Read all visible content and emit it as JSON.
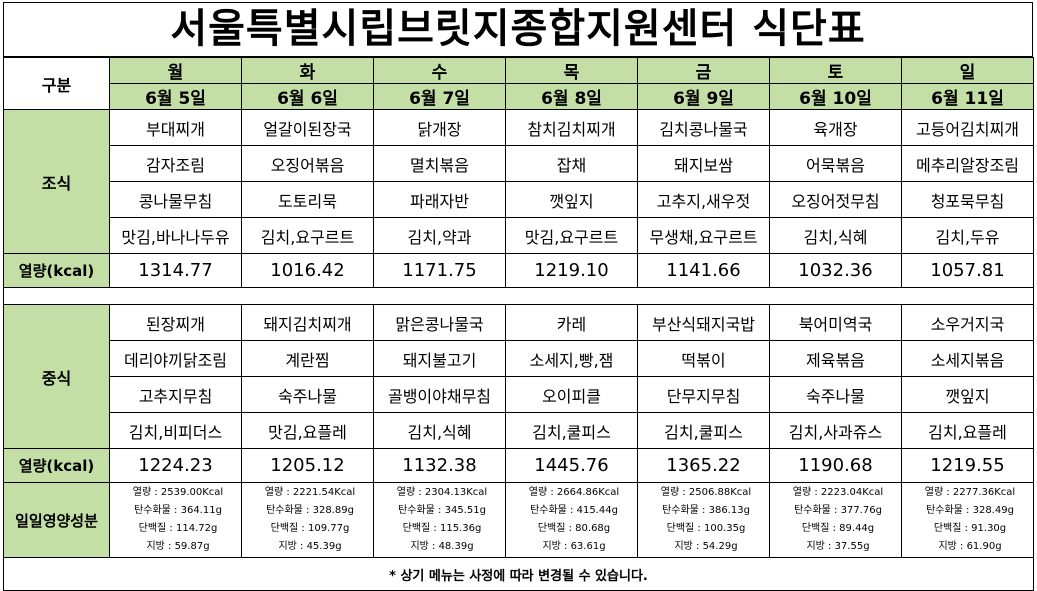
{
  "title": "서울특별시립브릿지종합지원센터  식단표",
  "header": {
    "category_label": "구분",
    "days": [
      {
        "day": "월",
        "date": "6월  5일"
      },
      {
        "day": "화",
        "date": "6월  6일"
      },
      {
        "day": "수",
        "date": "6월  7일"
      },
      {
        "day": "목",
        "date": "6월  8일"
      },
      {
        "day": "금",
        "date": "6월  9일"
      },
      {
        "day": "토",
        "date": "6월  10일"
      },
      {
        "day": "일",
        "date": "6월  11일"
      }
    ]
  },
  "breakfast": {
    "label": "조식",
    "rows": [
      [
        "부대찌개",
        "얼갈이된장국",
        "닭개장",
        "참치김치찌개",
        "김치콩나물국",
        "육개장",
        "고등어김치찌개"
      ],
      [
        "감자조림",
        "오징어볶음",
        "멸치볶음",
        "잡채",
        "돼지보쌈",
        "어묵볶음",
        "메추리알장조림"
      ],
      [
        "콩나물무침",
        "도토리묵",
        "파래자반",
        "깻잎지",
        "고추지,새우젓",
        "오징어젓무침",
        "청포묵무침"
      ],
      [
        "맛김,바나나두유",
        "김치,요구르트",
        "김치,약과",
        "맛김,요구르트",
        "무생채,요구르트",
        "김치,식혜",
        "김치,두유"
      ]
    ],
    "kcal_label": "열량(kcal)",
    "kcal": [
      "1314.77",
      "1016.42",
      "1171.75",
      "1219.10",
      "1141.66",
      "1032.36",
      "1057.81"
    ]
  },
  "lunch": {
    "label": "중식",
    "rows": [
      [
        "된장찌개",
        "돼지김치찌개",
        "맑은콩나물국",
        "카레",
        "부산식돼지국밥",
        "북어미역국",
        "소우거지국"
      ],
      [
        "데리야끼닭조림",
        "계란찜",
        "돼지불고기",
        "소세지,빵,잼",
        "떡볶이",
        "제육볶음",
        "소세지볶음"
      ],
      [
        "고추지무침",
        "숙주나물",
        "골뱅이야채무침",
        "오이피클",
        "단무지무침",
        "숙주나물",
        "깻잎지"
      ],
      [
        "김치,비피더스",
        "맛김,요플레",
        "김치,식혜",
        "김치,쿨피스",
        "김치,쿨피스",
        "김치,사과쥬스",
        "김치,요플레"
      ]
    ],
    "kcal_label": "열량(kcal)",
    "kcal": [
      "1224.23",
      "1205.12",
      "1132.38",
      "1445.76",
      "1365.22",
      "1190.68",
      "1219.55"
    ]
  },
  "nutrition": {
    "label": "일일영양성분",
    "days": [
      [
        "열량 : 2539.00Kcal",
        "탄수화물 : 364.11g",
        "단백질 : 114.72g",
        "지방 : 59.87g"
      ],
      [
        "열량 : 2221.54Kcal",
        "탄수화물 : 328.89g",
        "단백질 : 109.77g",
        "지방 : 45.39g"
      ],
      [
        "열량 : 2304.13Kcal",
        "탄수화물 : 345.51g",
        "단백질 : 115.36g",
        "지방 : 48.39g"
      ],
      [
        "열량 : 2664.86Kcal",
        "탄수화물 : 415.44g",
        "단백질 : 80.68g",
        "지방 : 63.61g"
      ],
      [
        "열량 : 2506.88Kcal",
        "탄수화물 : 386.13g",
        "단백질 : 100.35g",
        "지방 : 54.29g"
      ],
      [
        "열량 : 2223.04Kcal",
        "탄수화물 : 377.76g",
        "단백질 : 89.44g",
        "지방 : 37.55g"
      ],
      [
        "열량 : 2277.36Kcal",
        "탄수화물 : 328.49g",
        "단백질 : 91.30g",
        "지방 : 61.90g"
      ]
    ]
  },
  "footer": "*  상기  메뉴는  사정에  따라  변경될  수  있습니다."
}
